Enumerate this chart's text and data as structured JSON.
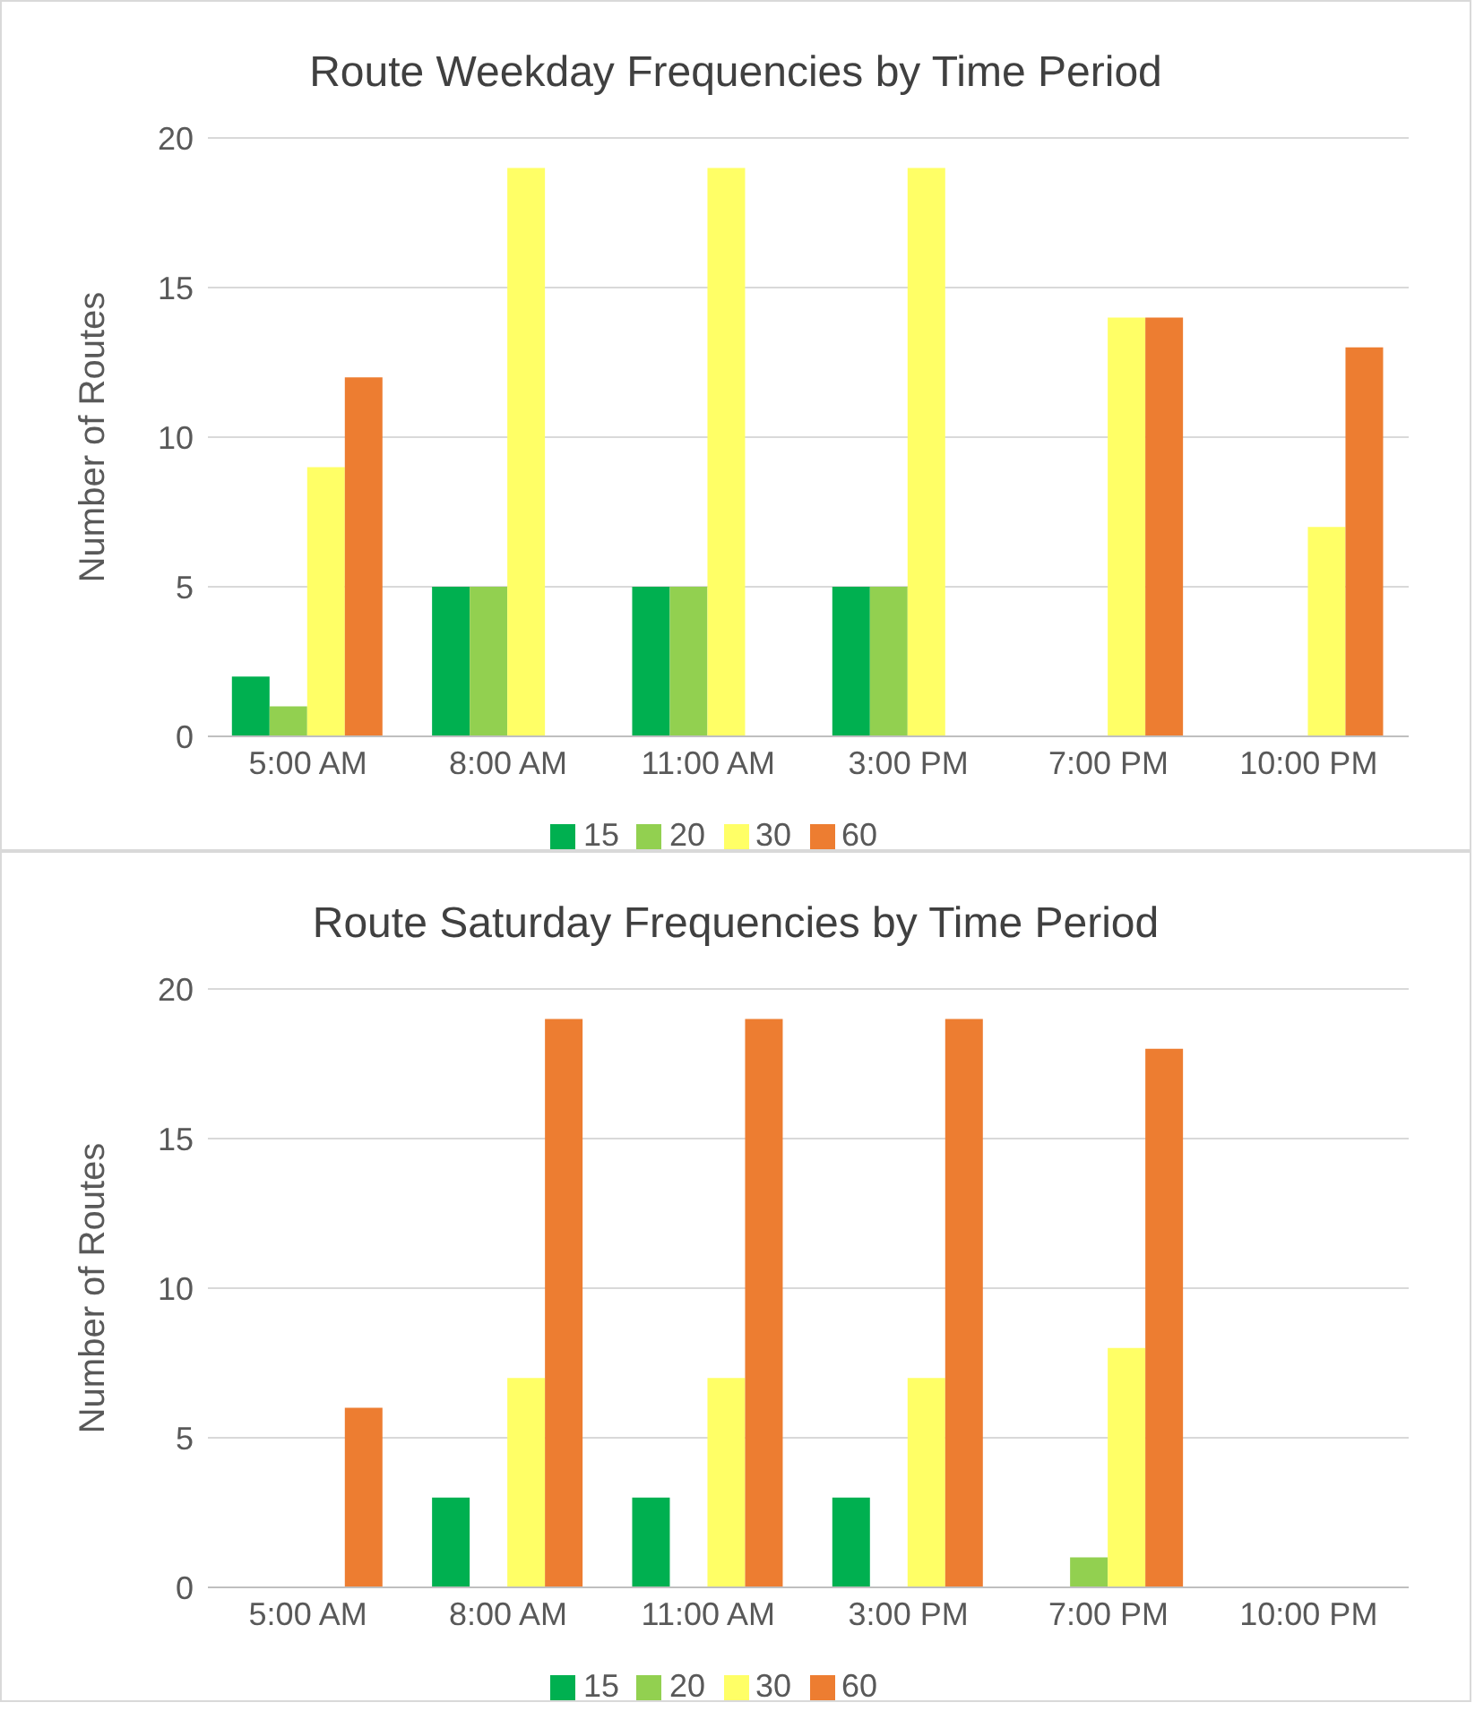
{
  "chart_data": [
    {
      "type": "bar",
      "title": "Route Weekday Frequencies by Time Period",
      "ylabel": "Number of Routes",
      "categories": [
        "5:00 AM",
        "8:00 AM",
        "11:00 AM",
        "3:00 PM",
        "7:00 PM",
        "10:00 PM"
      ],
      "series": [
        {
          "name": "15",
          "color": "#00b050",
          "values": [
            2,
            5,
            5,
            5,
            0,
            0
          ]
        },
        {
          "name": "20",
          "color": "#92d050",
          "values": [
            1,
            5,
            5,
            5,
            0,
            0
          ]
        },
        {
          "name": "30",
          "color": "#ffff66",
          "values": [
            9,
            19,
            19,
            19,
            14,
            7
          ]
        },
        {
          "name": "60",
          "color": "#ed7d31",
          "values": [
            12,
            0,
            0,
            0,
            14,
            13
          ]
        }
      ],
      "ylim": [
        0,
        20
      ],
      "yticks": [
        0,
        5,
        10,
        15,
        20
      ],
      "grid": "y",
      "legend": "bottom"
    },
    {
      "type": "bar",
      "title": "Route Saturday Frequencies by Time Period",
      "ylabel": "Number of Routes",
      "categories": [
        "5:00 AM",
        "8:00 AM",
        "11:00 AM",
        "3:00 PM",
        "7:00 PM",
        "10:00 PM"
      ],
      "series": [
        {
          "name": "15",
          "color": "#00b050",
          "values": [
            0,
            3,
            3,
            3,
            0,
            0
          ]
        },
        {
          "name": "20",
          "color": "#92d050",
          "values": [
            0,
            0,
            0,
            0,
            1,
            0
          ]
        },
        {
          "name": "30",
          "color": "#ffff66",
          "values": [
            0,
            7,
            7,
            7,
            8,
            0
          ]
        },
        {
          "name": "60",
          "color": "#ed7d31",
          "values": [
            6,
            19,
            19,
            19,
            18,
            0
          ]
        }
      ],
      "ylim": [
        0,
        20
      ],
      "yticks": [
        0,
        5,
        10,
        15,
        20
      ],
      "grid": "y",
      "legend": "bottom"
    }
  ]
}
